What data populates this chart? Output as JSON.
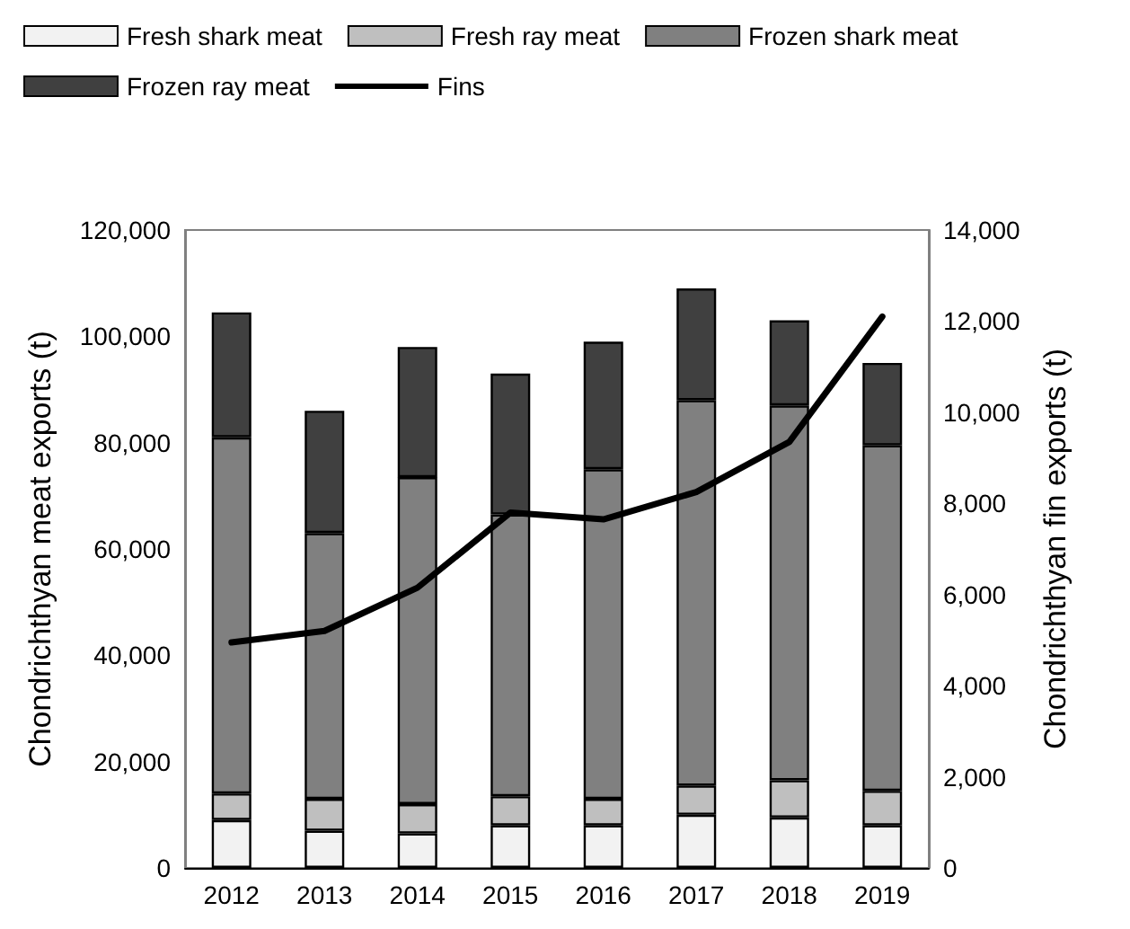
{
  "chart_data": {
    "type": "bar",
    "stacked": true,
    "ylabel": "Chondrichthyan meat exports (t)",
    "y2label": "Chondrichthyan fin exports (t)",
    "categories": [
      "2012",
      "2013",
      "2014",
      "2015",
      "2016",
      "2017",
      "2018",
      "2019"
    ],
    "series": [
      {
        "name": "Fresh shark meat",
        "color": "#f2f2f2",
        "values": [
          9000,
          7000,
          6500,
          8000,
          8000,
          10000,
          9500,
          8000
        ]
      },
      {
        "name": "Fresh ray meat",
        "color": "#bfbfbf",
        "values": [
          5000,
          6000,
          5500,
          5500,
          5000,
          5500,
          7000,
          6500
        ]
      },
      {
        "name": "Frozen shark meat",
        "color": "#808080",
        "values": [
          67000,
          50000,
          61500,
          53000,
          62000,
          72500,
          70500,
          65000
        ]
      },
      {
        "name": "Frozen ray meat",
        "color": "#404040",
        "values": [
          23500,
          23000,
          24500,
          26500,
          24000,
          21000,
          16000,
          15500
        ]
      },
      {
        "name": "Fins",
        "type": "line",
        "axis": "y2",
        "color": "#000000",
        "values": [
          4950,
          5200,
          6150,
          7800,
          7650,
          8250,
          9350,
          12100
        ]
      }
    ],
    "ylim": [
      0,
      120000
    ],
    "yticks": [
      0,
      {
        "value": 20000,
        "label": "20,000"
      },
      {
        "value": 40000,
        "label": "40,000"
      },
      {
        "value": 60000,
        "label": "60,000"
      },
      {
        "value": 80000,
        "label": "80,000"
      },
      {
        "value": 100000,
        "label": "100,000"
      },
      {
        "value": 120000,
        "label": "120,000"
      }
    ],
    "y2lim": [
      0,
      14000
    ],
    "y2ticks": [
      0,
      {
        "value": 2000,
        "label": "2,000"
      },
      {
        "value": 4000,
        "label": "4,000"
      },
      {
        "value": 6000,
        "label": "6,000"
      },
      {
        "value": 8000,
        "label": "8,000"
      },
      {
        "value": 10000,
        "label": "10,000"
      },
      {
        "value": 12000,
        "label": "12,000"
      },
      {
        "value": 14000,
        "label": "14,000"
      }
    ],
    "grid": false,
    "legend": "top",
    "marker": "none",
    "line_style": "solid"
  }
}
